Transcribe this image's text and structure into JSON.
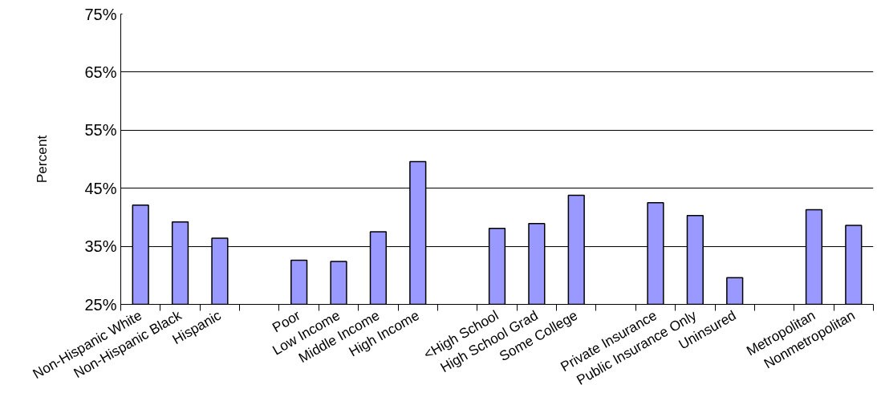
{
  "chart_data": {
    "type": "bar",
    "ylabel": "Percent",
    "categories": [
      "Non-Hispanic White",
      "Non-Hispanic Black",
      "Hispanic",
      null,
      "Poor",
      "Low Income",
      "Middle Income",
      "High Income",
      null,
      "<High School",
      "High School Grad",
      "Some College",
      null,
      "Private Insurance",
      "Public Insurance Only",
      "Uninsured",
      null,
      "Metropolitan",
      "Nonmetropolitan"
    ],
    "values": [
      42.1,
      39.2,
      36.4,
      null,
      32.6,
      32.4,
      37.5,
      49.6,
      null,
      38.1,
      38.9,
      43.8,
      null,
      42.5,
      40.3,
      29.6,
      null,
      41.3,
      38.6
    ],
    "color": "#9999ff",
    "ylim": [
      25,
      75
    ],
    "yticks": [
      {
        "value": 25,
        "label": "25%"
      },
      {
        "value": 35,
        "label": "35%"
      },
      {
        "value": 45,
        "label": "45%"
      },
      {
        "value": 55,
        "label": "55%"
      },
      {
        "value": 65,
        "label": "65%"
      },
      {
        "value": 75,
        "label": "75%"
      }
    ],
    "grid": "y"
  }
}
